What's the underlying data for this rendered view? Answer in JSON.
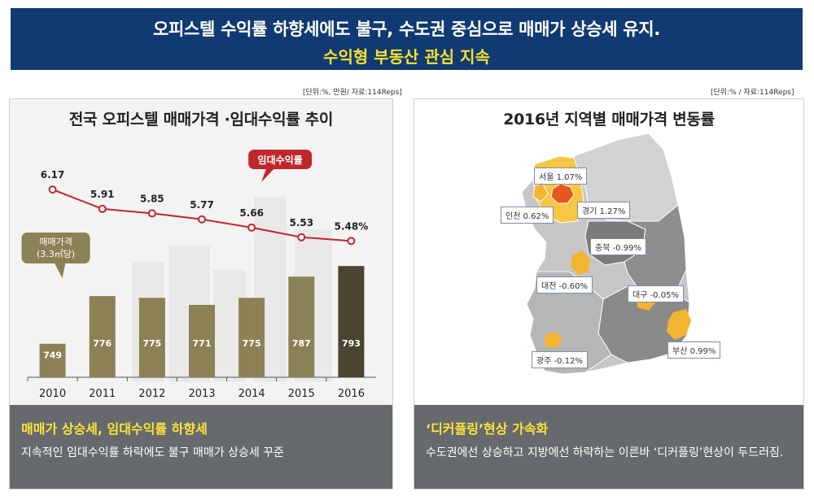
{
  "banner": {
    "line1": "오피스텔 수익률 하향세에도 불구, 수도권 중심으로 매매가 상승세 유지.",
    "line2": "수익형 부동산 관심 지속"
  },
  "left_panel": {
    "unit_note": "[단위:%, 만원/ 자료:114Reps]",
    "title": "전국 오피스텔 매매가격 ·임대수익률 추이",
    "caption_head": "매매가 상승세, 임대수익률 하향세",
    "caption_body": "지속적인 임대수익률 하락에도 불구 매매가 상승세 꾸준"
  },
  "right_panel": {
    "unit_note": "[단위:% / 자료:114Reps]",
    "title": "2016년 지역별 매매가격 변동률",
    "caption_head": "‘디커플링’현상 가속화",
    "caption_body": "수도권에선 상승하고 지방에선 하락하는 이른바 ‘디커플링’현상이 두드러짐."
  },
  "chart_data": [
    {
      "type": "bar+line",
      "title": "전국 오피스텔 매매가격 ·임대수익률 추이",
      "categories": [
        "2010",
        "2011",
        "2012",
        "2013",
        "2014",
        "2015",
        "2016"
      ],
      "series": [
        {
          "name": "매매가격",
          "label": "매매가격\n(3.3㎡당)",
          "kind": "bar",
          "values": [
            749,
            776,
            775,
            771,
            775,
            787,
            793
          ],
          "value_labels": [
            "749",
            "776",
            "775",
            "771",
            "775",
            "787",
            "793"
          ],
          "color": "#8c8155",
          "highlight_color": "#4a4431"
        },
        {
          "name": "임대수익률",
          "kind": "line",
          "values": [
            6.17,
            5.91,
            5.85,
            5.77,
            5.66,
            5.53,
            5.48
          ],
          "value_labels": [
            "6.17",
            "5.91",
            "5.85",
            "5.77",
            "5.66",
            "5.53",
            "5.48%"
          ],
          "color": "#c0272d"
        }
      ],
      "bar_ylim": [
        730,
        800
      ],
      "line_ylim": [
        5.2,
        6.4
      ]
    },
    {
      "type": "map",
      "title": "2016년 지역별 매매가격 변동률",
      "regions": [
        {
          "name": "서울",
          "value": 1.07,
          "label": "서울 1.07%",
          "color": "#e8581c"
        },
        {
          "name": "인천",
          "value": 0.62,
          "label": "인천 0.62%",
          "color": "#f3b431"
        },
        {
          "name": "경기",
          "value": 1.27,
          "label": "경기 1.27%",
          "color": "#f7c642"
        },
        {
          "name": "충북",
          "value": -0.99,
          "label": "충북 -0.99%",
          "color": "#7b7b7b"
        },
        {
          "name": "대전",
          "value": -0.6,
          "label": "대전 -0.60%",
          "color": "#f3b431"
        },
        {
          "name": "대구",
          "value": -0.05,
          "label": "대구 -0.05%",
          "color": "#f3b431"
        },
        {
          "name": "광주",
          "value": -0.12,
          "label": "광주 -0.12%",
          "color": "#f3b431"
        },
        {
          "name": "부산",
          "value": 0.99,
          "label": "부산 0.99%",
          "color": "#f3b431"
        }
      ]
    }
  ]
}
